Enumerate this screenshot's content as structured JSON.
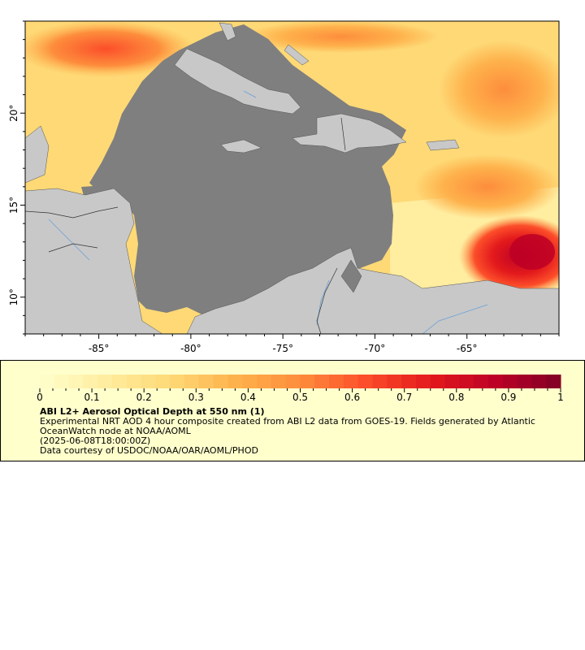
{
  "map": {
    "lon_ticks": [
      -85,
      -80,
      -75,
      -70,
      -65
    ],
    "lon_tick_labels": [
      "-85°",
      "-80°",
      "-75°",
      "-70°",
      "-65°"
    ],
    "lat_ticks": [
      10,
      15,
      20
    ],
    "lat_tick_labels": [
      "10°",
      "15°",
      "20°"
    ],
    "extent": {
      "lon_min": -89,
      "lon_max": -60,
      "lat_min": 8,
      "lat_max": 25
    },
    "colors": {
      "no_data": "#7f7f7f",
      "land": "#c8c8c8",
      "borders": "#555555",
      "rivers": "#6aa0d8"
    }
  },
  "colorbar": {
    "min": 0,
    "max": 1,
    "tick_labels": [
      "0",
      "0.1",
      "0.2",
      "0.3",
      "0.4",
      "0.5",
      "0.6",
      "0.7",
      "0.8",
      "0.9",
      "1"
    ],
    "colors": [
      "#ffffcc",
      "#ffeda0",
      "#fed976",
      "#feb24c",
      "#fd8d3c",
      "#fc4e2a",
      "#e31a1c",
      "#bd0026",
      "#800026"
    ]
  },
  "legend": {
    "title": "ABI L2+ Aerosol Optical Depth at 550 nm (1)",
    "description": "Experimental NRT AOD 4 hour composite created from ABI L2 data from GOES-19. Fields generated by Atlantic OceanWatch node at NOAA/AOML",
    "time": "(2025-06-08T18:00:00Z)",
    "credit": "Data courtesy of USDOC/NOAA/OAR/AOML/PHOD"
  }
}
